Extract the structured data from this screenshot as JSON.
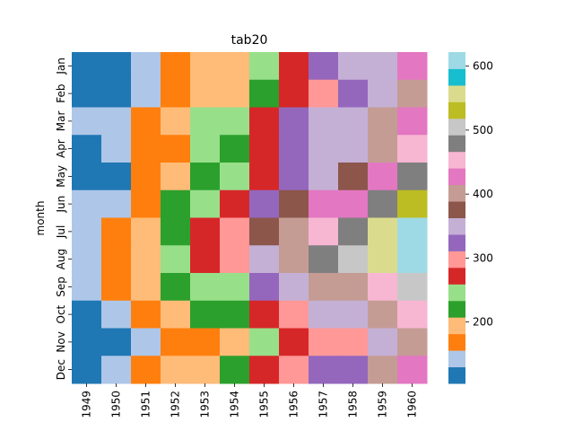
{
  "chart_data": {
    "type": "heatmap",
    "title": "tab20",
    "xlabel": "",
    "ylabel": "month",
    "x_categories": [
      "1949",
      "1950",
      "1951",
      "1952",
      "1953",
      "1954",
      "1955",
      "1956",
      "1957",
      "1958",
      "1959",
      "1960"
    ],
    "y_categories": [
      "Jan",
      "Feb",
      "Mar",
      "Apr",
      "May",
      "Jun",
      "Jul",
      "Aug",
      "Sep",
      "Oct",
      "Nov",
      "Dec"
    ],
    "values": [
      [
        112,
        115,
        145,
        171,
        196,
        204,
        242,
        284,
        315,
        340,
        360,
        417
      ],
      [
        118,
        126,
        150,
        180,
        196,
        188,
        233,
        277,
        301,
        318,
        342,
        391
      ],
      [
        132,
        141,
        178,
        193,
        236,
        235,
        267,
        317,
        356,
        362,
        406,
        419
      ],
      [
        129,
        135,
        163,
        181,
        235,
        227,
        269,
        313,
        348,
        348,
        396,
        461
      ],
      [
        121,
        125,
        172,
        183,
        229,
        234,
        270,
        318,
        355,
        363,
        420,
        472
      ],
      [
        135,
        149,
        178,
        218,
        243,
        264,
        315,
        374,
        422,
        435,
        472,
        535
      ],
      [
        148,
        170,
        199,
        230,
        264,
        302,
        364,
        413,
        465,
        491,
        548,
        622
      ],
      [
        148,
        170,
        199,
        242,
        272,
        293,
        347,
        405,
        467,
        505,
        559,
        606
      ],
      [
        136,
        158,
        184,
        209,
        237,
        259,
        312,
        355,
        404,
        404,
        463,
        508
      ],
      [
        119,
        133,
        162,
        191,
        211,
        229,
        274,
        306,
        347,
        359,
        407,
        461
      ],
      [
        104,
        114,
        146,
        172,
        180,
        203,
        237,
        271,
        305,
        310,
        362,
        390
      ],
      [
        118,
        140,
        166,
        194,
        201,
        229,
        278,
        306,
        336,
        337,
        405,
        432
      ]
    ],
    "colormap": "tab20",
    "vmin": 104,
    "vmax": 622,
    "colorbar_ticks": [
      200,
      300,
      400,
      500,
      600
    ],
    "colors": [
      "#1f77b4",
      "#aec7e8",
      "#ff7f0e",
      "#ffbb78",
      "#2ca02c",
      "#98df8a",
      "#d62728",
      "#ff9896",
      "#9467bd",
      "#c5b0d5",
      "#8c564b",
      "#c49c94",
      "#e377c2",
      "#f7b6d2",
      "#7f7f7f",
      "#c7c7c7",
      "#bcbd22",
      "#dbdb8d",
      "#17becf",
      "#9edae5"
    ]
  }
}
